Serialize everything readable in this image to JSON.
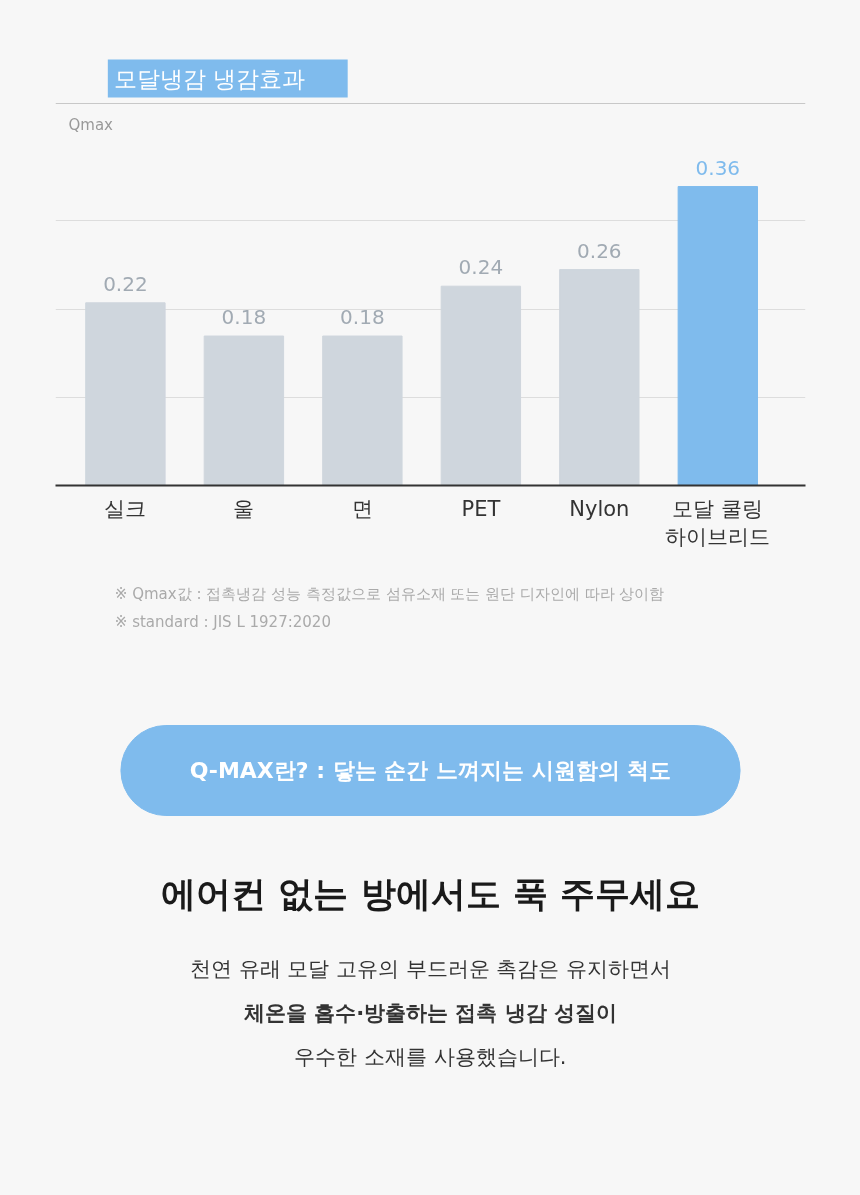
{
  "chart_data": {
    "type": "bar",
    "title": "모달냉감 냉감효과",
    "ylabel": "Qmax",
    "categories": [
      "실크",
      "울",
      "면",
      "PET",
      "Nylon",
      "모달 쿨링\n하이브리드"
    ],
    "values": [
      0.22,
      0.18,
      0.18,
      0.24,
      0.26,
      0.36
    ],
    "colors": [
      "#cfd6dd",
      "#cfd6dd",
      "#cfd6dd",
      "#cfd6dd",
      "#cfd6dd",
      "#7fbbed"
    ],
    "data_labels": true,
    "ylim": [
      0,
      0.46
    ],
    "yticks": [
      {
        "value": 0.106,
        "label": null
      },
      {
        "value": 0.212,
        "label": null
      },
      {
        "value": 0.319,
        "label": null
      }
    ],
    "grid": "y",
    "annotations": [
      "※ Qmax값 : 접촉냉감 성능 측정값으로 섬유소재 또는 원단 디자인에 따라 상이함",
      "※ standard : JIS L 1927:2020",
      "Q-MAX란? : 닿는 순간 느껴지는 시원함의 척도",
      "에어컨 없는 방에서도 푹 주무세요",
      "천연 유래 모달 고유의 부드러운 촉감은 유지하면서",
      "체온을 흡수·방출하는 접촉 냉감 성질이",
      "우수한 소재를 사용했습니다."
    ]
  }
}
